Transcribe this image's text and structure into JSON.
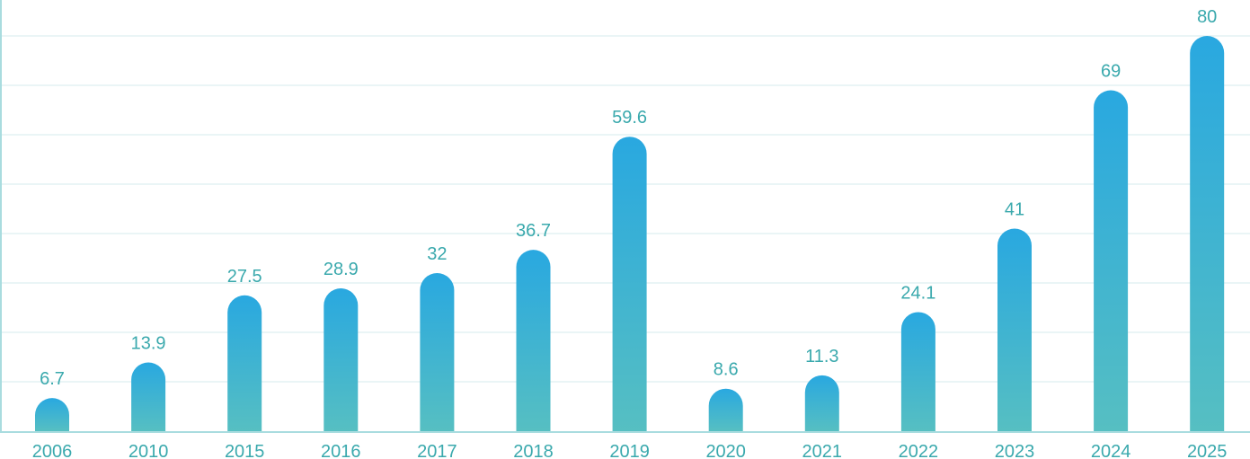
{
  "colors": {
    "bar_top": "#29a8e0",
    "bar_bottom": "#56bfc2",
    "label": "#3aa9ad",
    "grid": "#e3f2f3",
    "axis": "#a9dcdf"
  },
  "chart_data": {
    "type": "bar",
    "categories": [
      "2006",
      "2010",
      "2015",
      "2016",
      "2017",
      "2018",
      "2019",
      "2020",
      "2021",
      "2022",
      "2023",
      "2024",
      "2025"
    ],
    "values": [
      6.7,
      13.9,
      27.5,
      28.9,
      32,
      36.7,
      59.6,
      8.6,
      11.3,
      24.1,
      41,
      69,
      80
    ],
    "value_labels": [
      "6.7",
      "13.9",
      "27.5",
      "28.9",
      "32",
      "36.7",
      "59.6",
      "8.6",
      "11.3",
      "24.1",
      "41",
      "69",
      "80"
    ],
    "title": "",
    "xlabel": "",
    "ylabel": "",
    "ylim": [
      0,
      80
    ],
    "grid": true,
    "legend": "none"
  }
}
